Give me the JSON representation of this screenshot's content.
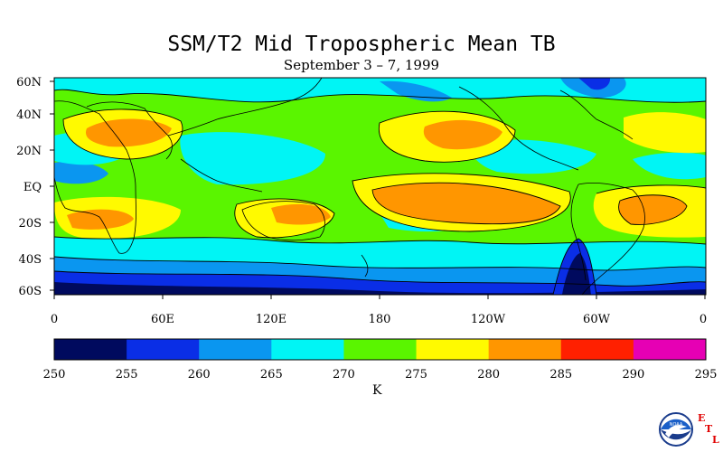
{
  "title": "SSM/T2 Mid Tropospheric Mean TB",
  "subtitle": "September 3 – 7, 1999",
  "lat_labels": [
    "60N",
    "40N",
    "20N",
    "EQ",
    "20S",
    "40S",
    "60S"
  ],
  "lon_labels": [
    "0",
    "60E",
    "120E",
    "180",
    "120W",
    "60W",
    "0"
  ],
  "colorbar": {
    "unit": "K",
    "ticks": [
      "250",
      "255",
      "260",
      "265",
      "270",
      "275",
      "280",
      "285",
      "290",
      "295"
    ],
    "colors": [
      "#000a5e",
      "#0a2ee6",
      "#0a96f0",
      "#00f5f5",
      "#5af500",
      "#fffa00",
      "#ff9600",
      "#ff2000",
      "#e600b4"
    ]
  },
  "logo": {
    "noaa": "NOAA",
    "etl": [
      "E",
      "T",
      "L"
    ]
  }
}
